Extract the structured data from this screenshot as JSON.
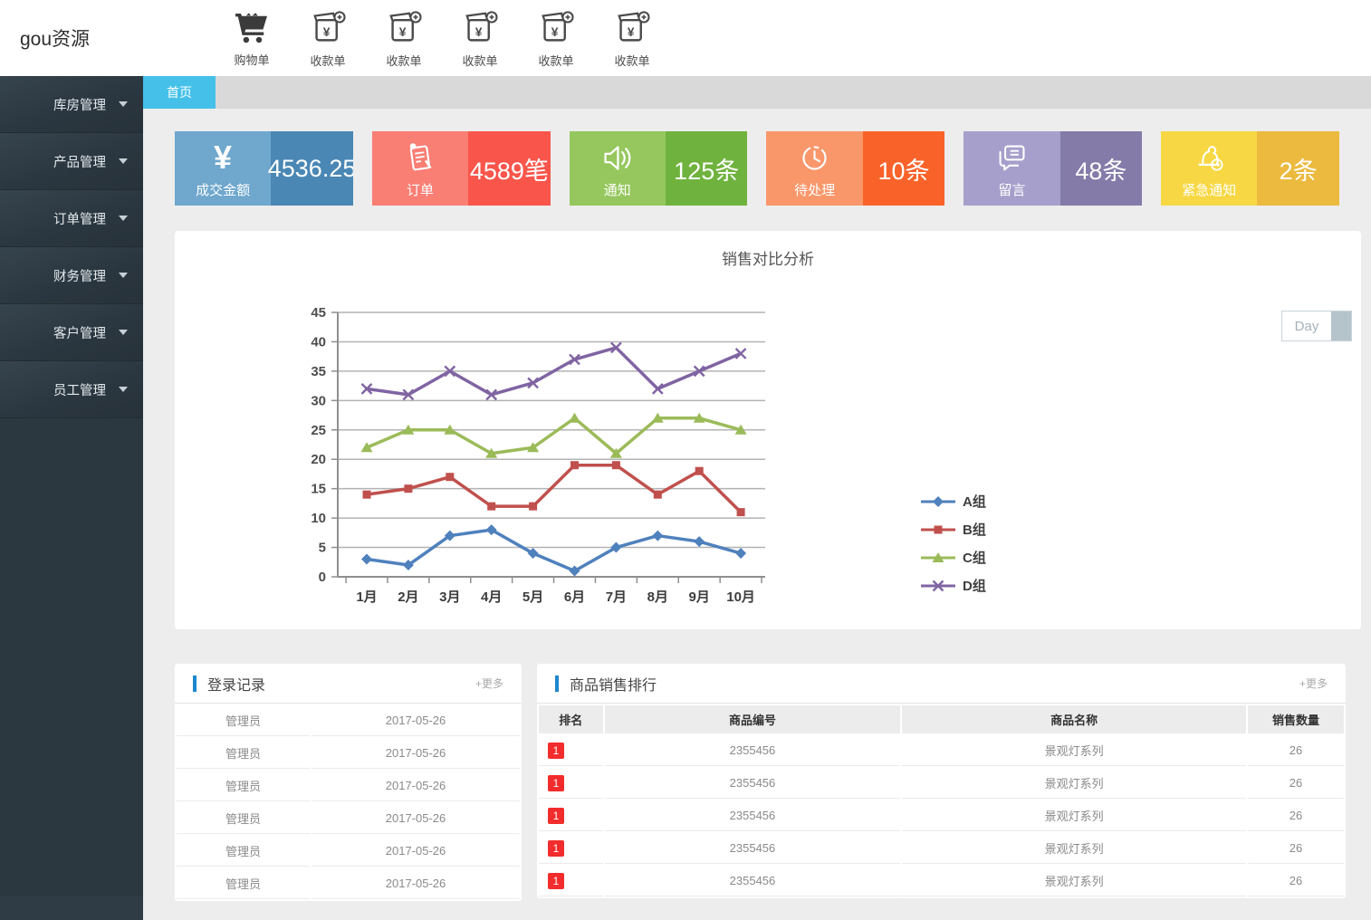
{
  "app": {
    "logo": "gou资源"
  },
  "header": {
    "actions": [
      {
        "label": "购物单",
        "icon": "cart-icon"
      },
      {
        "label": "收款单",
        "icon": "receipt-icon"
      },
      {
        "label": "收款单",
        "icon": "receipt-icon"
      },
      {
        "label": "收款单",
        "icon": "receipt-icon"
      },
      {
        "label": "收款单",
        "icon": "receipt-icon"
      },
      {
        "label": "收款单",
        "icon": "receipt-icon"
      }
    ]
  },
  "sidebar": {
    "items": [
      {
        "label": "库房管理"
      },
      {
        "label": "产品管理"
      },
      {
        "label": "订单管理"
      },
      {
        "label": "财务管理"
      },
      {
        "label": "客户管理"
      },
      {
        "label": "员工管理"
      }
    ]
  },
  "tabs": {
    "active": "首页"
  },
  "colors": {
    "tab": "#45c1e9",
    "panel_accent": "#1d86d0",
    "rank_badge": "#f22c2c"
  },
  "stats": [
    {
      "label": "成交金额",
      "value": "4536.25",
      "icon": "yuan-icon",
      "color_left": "#6fa7cd",
      "color_right": "#4a87b4"
    },
    {
      "label": "订单",
      "value": "4589笔",
      "icon": "order-icon",
      "color_left": "#f97e74",
      "color_right": "#f9554b"
    },
    {
      "label": "通知",
      "value": "125条",
      "icon": "speaker-icon",
      "color_left": "#96c75e",
      "color_right": "#6fb33e"
    },
    {
      "label": "待处理",
      "value": "10条",
      "icon": "clock-icon",
      "color_left": "#f9976b",
      "color_right": "#f9632a"
    },
    {
      "label": "留言",
      "value": "48条",
      "icon": "message-icon",
      "color_left": "#a79fcb",
      "color_right": "#847ba9"
    },
    {
      "label": "紧急通知",
      "value": "2条",
      "icon": "alarm-icon",
      "color_left": "#f7d844",
      "color_right": "#ecba3e"
    }
  ],
  "chart_panel": {
    "title": "销售对比分析",
    "range_button": "Day"
  },
  "chart_data": {
    "type": "line",
    "title": "销售对比分析",
    "categories": [
      "1月",
      "2月",
      "3月",
      "4月",
      "5月",
      "6月",
      "7月",
      "8月",
      "9月",
      "10月"
    ],
    "series": [
      {
        "name": "A组",
        "color": "#4f81bd",
        "marker": "diamond",
        "values": [
          3,
          2,
          7,
          8,
          4,
          1,
          5,
          7,
          6,
          4
        ]
      },
      {
        "name": "B组",
        "color": "#c0504d",
        "marker": "square",
        "values": [
          14,
          15,
          17,
          12,
          12,
          19,
          19,
          14,
          18,
          11
        ]
      },
      {
        "name": "C组",
        "color": "#9bbb59",
        "marker": "triangle",
        "values": [
          22,
          25,
          25,
          21,
          22,
          27,
          21,
          27,
          27,
          25
        ]
      },
      {
        "name": "D组",
        "color": "#8064a2",
        "marker": "x",
        "values": [
          32,
          31,
          35,
          31,
          33,
          37,
          39,
          32,
          35,
          38
        ]
      }
    ],
    "xlabel": "",
    "ylabel": "",
    "ylim": [
      0,
      45
    ],
    "ytick": 5,
    "grid": true,
    "legend_position": "right"
  },
  "login_panel": {
    "title": "登录记录",
    "more": "+更多",
    "rows": [
      {
        "user": "管理员",
        "date": "2017-05-26"
      },
      {
        "user": "管理员",
        "date": "2017-05-26"
      },
      {
        "user": "管理员",
        "date": "2017-05-26"
      },
      {
        "user": "管理员",
        "date": "2017-05-26"
      },
      {
        "user": "管理员",
        "date": "2017-05-26"
      },
      {
        "user": "管理员",
        "date": "2017-05-26"
      }
    ]
  },
  "sales_panel": {
    "title": "商品销售排行",
    "more": "+更多",
    "columns": [
      "排名",
      "商品编号",
      "商品名称",
      "销售数量"
    ],
    "rows": [
      {
        "rank": "1",
        "code": "2355456",
        "name": "景观灯系列",
        "qty": "26"
      },
      {
        "rank": "1",
        "code": "2355456",
        "name": "景观灯系列",
        "qty": "26"
      },
      {
        "rank": "1",
        "code": "2355456",
        "name": "景观灯系列",
        "qty": "26"
      },
      {
        "rank": "1",
        "code": "2355456",
        "name": "景观灯系列",
        "qty": "26"
      },
      {
        "rank": "1",
        "code": "2355456",
        "name": "景观灯系列",
        "qty": "26"
      }
    ]
  }
}
